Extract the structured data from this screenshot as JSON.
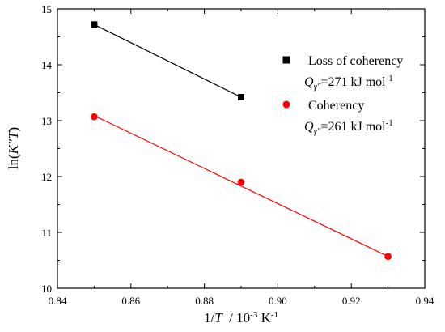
{
  "chart_data": {
    "type": "scatter",
    "xlabel": {
      "pre": "1/",
      "var": "T",
      "post": "  / 10",
      "sup": "-3",
      "unit": " K",
      "unitsup": "-1"
    },
    "ylabel": {
      "pre": "ln(",
      "var": "K″T",
      "post": ")"
    },
    "xlim": [
      0.84,
      0.94
    ],
    "ylim": [
      10,
      15
    ],
    "xticks": [
      0.84,
      0.86,
      0.88,
      0.9,
      0.92,
      0.94
    ],
    "xtick_labels": [
      "0.84",
      "0.86",
      "0.88",
      "0.90",
      "0.92",
      "0.94"
    ],
    "yticks": [
      10,
      11,
      12,
      13,
      14,
      15
    ],
    "ytick_labels": [
      "10",
      "11",
      "12",
      "13",
      "14",
      "15"
    ],
    "grid": false,
    "legend_position": "top-right",
    "series": [
      {
        "name": "Loss of coherency",
        "subtext": {
          "q": "Q",
          "sub": "γ″",
          "val": "=271 kJ mol",
          "sup": "-1"
        },
        "marker": "square",
        "color": "#000000",
        "fit_color": "#000000",
        "points": [
          {
            "x": 0.85,
            "y": 14.72
          },
          {
            "x": 0.89,
            "y": 13.42
          }
        ],
        "fit": [
          {
            "x": 0.85,
            "y": 14.72
          },
          {
            "x": 0.89,
            "y": 13.42
          }
        ]
      },
      {
        "name": "Coherency",
        "subtext": {
          "q": "Q",
          "sub": "γ″",
          "val": "=261 kJ mol",
          "sup": "-1"
        },
        "marker": "circle",
        "color": "#ff0000",
        "fit_color": "#ff0000",
        "points": [
          {
            "x": 0.85,
            "y": 13.07
          },
          {
            "x": 0.89,
            "y": 11.9
          },
          {
            "x": 0.93,
            "y": 10.57
          }
        ],
        "fit": [
          {
            "x": 0.85,
            "y": 13.09
          },
          {
            "x": 0.93,
            "y": 10.57
          }
        ]
      }
    ]
  }
}
